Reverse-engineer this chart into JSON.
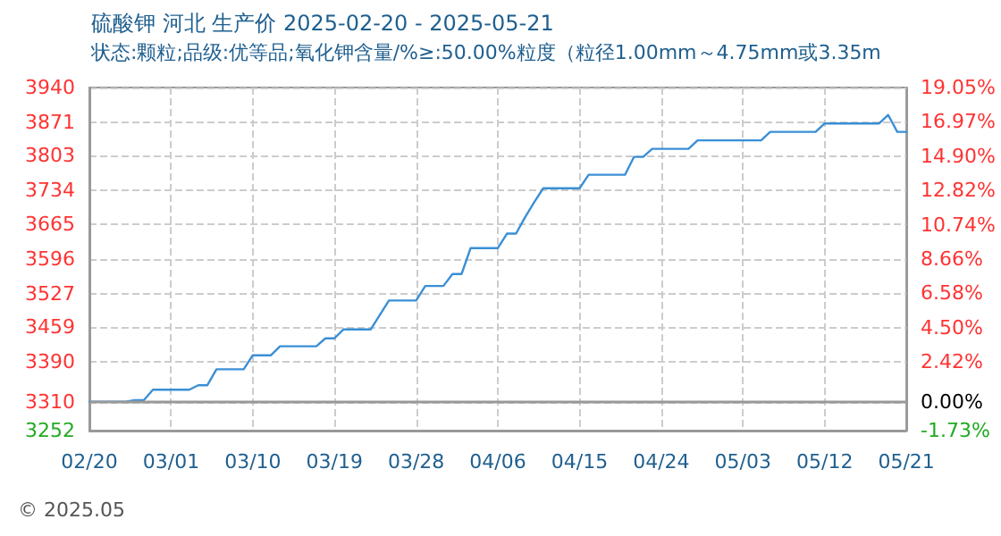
{
  "chart_data": {
    "type": "line",
    "title": "硫酸钾 河北 生产价 2025-02-20 - 2025-05-21",
    "subtitle": "状态:颗粒;品级:优等品;氧化钾含量/%≥:50.00%粒度（粒径1.00mm～4.75mm或3.35m",
    "annotations": [
      "© 2025.05"
    ],
    "x": [
      "--02-20",
      "--02-24",
      "--02-25",
      "--02-26",
      "--02-27",
      "--03-03",
      "--03-04",
      "--03-05",
      "--03-06",
      "--03-09",
      "--03-10",
      "--03-12",
      "--03-13",
      "--03-17",
      "--03-18",
      "--03-19",
      "--03-20",
      "--03-23",
      "--03-25",
      "--03-28",
      "--03-29",
      "--03-31",
      "--04-01",
      "--04-02",
      "--04-03",
      "--04-06",
      "--04-07",
      "--04-08",
      "--04-09",
      "--04-10",
      "--04-11",
      "--04-15",
      "--04-16",
      "--04-20",
      "--04-21",
      "--04-22",
      "--04-23",
      "--04-27",
      "--04-28",
      "--05-05",
      "--05-06",
      "--05-11",
      "--05-12",
      "--05-18",
      "--05-19",
      "--05-20",
      "--05-21"
    ],
    "series": [
      {
        "color": "#3a8fd6",
        "values": [
          3310,
          3310,
          3313,
          3313,
          3334,
          3334,
          3343,
          3343,
          3375,
          3375,
          3403,
          3403,
          3421,
          3421,
          3437,
          3437,
          3455,
          3455,
          3513,
          3513,
          3542,
          3542,
          3566,
          3566,
          3618,
          3618,
          3647,
          3647,
          3680,
          3710,
          3738,
          3738,
          3765,
          3765,
          3801,
          3801,
          3817,
          3817,
          3834,
          3834,
          3851,
          3851,
          3868,
          3868,
          3885,
          3851,
          3851
        ]
      }
    ],
    "xlim": [
      "--02-20",
      "--05-21"
    ],
    "xticks": [
      {
        "value": "--02-20",
        "label": "02/20"
      },
      {
        "value": "--03-01",
        "label": "03/01"
      },
      {
        "value": "--03-10",
        "label": "03/10"
      },
      {
        "value": "--03-19",
        "label": "03/19"
      },
      {
        "value": "--03-28",
        "label": "03/28"
      },
      {
        "value": "--04-06",
        "label": "04/06"
      },
      {
        "value": "--04-15",
        "label": "04/15"
      },
      {
        "value": "--04-24",
        "label": "04/24"
      },
      {
        "value": "--05-03",
        "label": "05/03"
      },
      {
        "value": "--05-12",
        "label": "05/12"
      },
      {
        "value": "--05-21",
        "label": "05/21"
      }
    ],
    "ylim": [
      3252,
      3940
    ],
    "yticks": [
      3252,
      3310,
      3390,
      3459,
      3527,
      3596,
      3665,
      3734,
      3803,
      3871,
      3940
    ],
    "y2lim": [
      -1.73,
      19.05
    ],
    "y2ticks": [
      {
        "value": -1.73,
        "label": "-1.73%"
      },
      {
        "value": 0,
        "label": "0.00%"
      },
      {
        "value": 2.42,
        "label": "2.42%"
      },
      {
        "value": 4.5,
        "label": "4.50%"
      },
      {
        "value": 6.58,
        "label": "6.58%"
      },
      {
        "value": 8.66,
        "label": "8.66%"
      },
      {
        "value": 10.74,
        "label": "10.74%"
      },
      {
        "value": 12.82,
        "label": "12.82%"
      },
      {
        "value": 14.9,
        "label": "14.90%"
      },
      {
        "value": 16.97,
        "label": "16.97%"
      },
      {
        "value": 19.05,
        "label": "19.05%"
      }
    ],
    "ref_lines": [
      {
        "axis": "y",
        "value": 3310,
        "color": "#999999",
        "line_style": "solid"
      }
    ],
    "grid": true,
    "marker": "none",
    "line_style": "solid"
  }
}
